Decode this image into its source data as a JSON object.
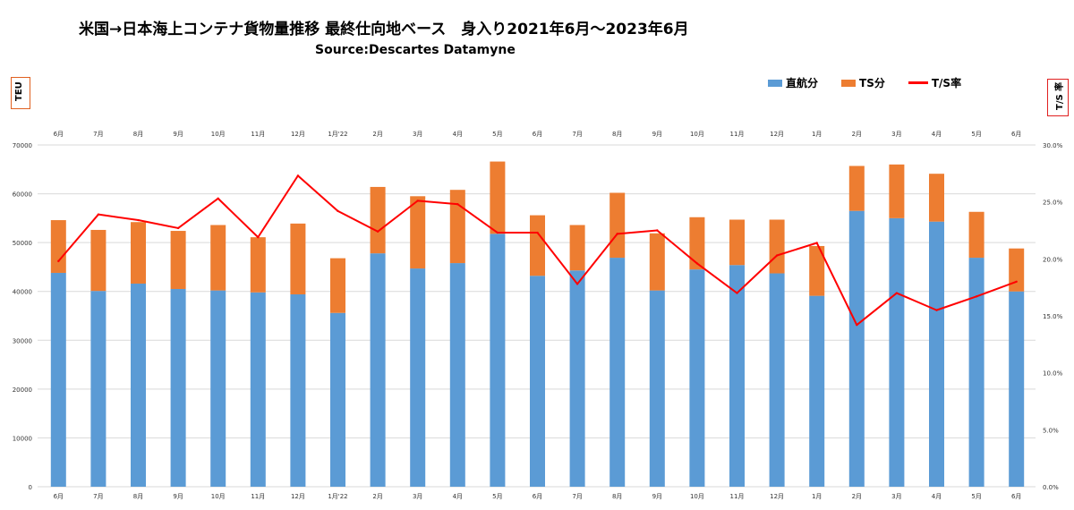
{
  "header": {
    "title": "米国→日本海上コンテナ貨物量推移 最終仕向地ベース　身入り2021年6月～2023年6月",
    "subtitle": "Source:Descartes Datamyne",
    "left_unit": "TEU",
    "right_unit": "T/S 率"
  },
  "legend": {
    "direct": "直航分",
    "ts": "TS分",
    "rate": "T/S率"
  },
  "colors": {
    "direct": "#5b9bd5",
    "ts": "#ed7d31",
    "rate": "#ff0000",
    "grid": "#d9d9d9"
  },
  "chart_data": {
    "type": "bar",
    "stacked": true,
    "categories": [
      "6月",
      "7月",
      "8月",
      "9月",
      "10月",
      "11月",
      "12月",
      "1月'22",
      "2月",
      "3月",
      "4月",
      "5月",
      "6月",
      "7月",
      "8月",
      "9月",
      "10月",
      "11月",
      "12月",
      "1月",
      "2月",
      "3月",
      "4月",
      "5月",
      "6月"
    ],
    "series": [
      {
        "name": "直航分",
        "values": [
          43800,
          40100,
          41600,
          40500,
          40200,
          39800,
          39400,
          35600,
          47800,
          44700,
          45800,
          51800,
          43200,
          44300,
          46900,
          40200,
          44500,
          45400,
          43700,
          39100,
          56500,
          55000,
          54300,
          46900,
          40000
        ]
      },
      {
        "name": "TS分",
        "values": [
          10800,
          12500,
          12600,
          11900,
          13400,
          11300,
          14500,
          11200,
          13600,
          14800,
          15000,
          14800,
          12400,
          9300,
          13300,
          11700,
          10700,
          9300,
          11000,
          10200,
          9200,
          11000,
          9800,
          9400,
          8800
        ]
      },
      {
        "name": "T/S率",
        "axis": "right",
        "values": [
          19.8,
          23.9,
          23.4,
          22.7,
          25.3,
          21.9,
          27.3,
          24.2,
          22.4,
          25.1,
          24.8,
          22.3,
          22.3,
          17.8,
          22.2,
          22.5,
          19.6,
          17.0,
          20.3,
          21.4,
          14.2,
          17.0,
          15.5,
          16.7,
          18.0
        ]
      }
    ],
    "y_left": {
      "min": 0,
      "max": 70000,
      "ticks": [
        "0",
        "10000",
        "20000",
        "30000",
        "40000",
        "50000",
        "60000",
        "70000"
      ]
    },
    "y_right": {
      "min": 0,
      "max": 30,
      "ticks": [
        "0.0%",
        "5.0%",
        "10.0%",
        "15.0%",
        "20.0%",
        "25.0%",
        "30.0%"
      ]
    },
    "grid": true,
    "legend_position": "top-right"
  }
}
